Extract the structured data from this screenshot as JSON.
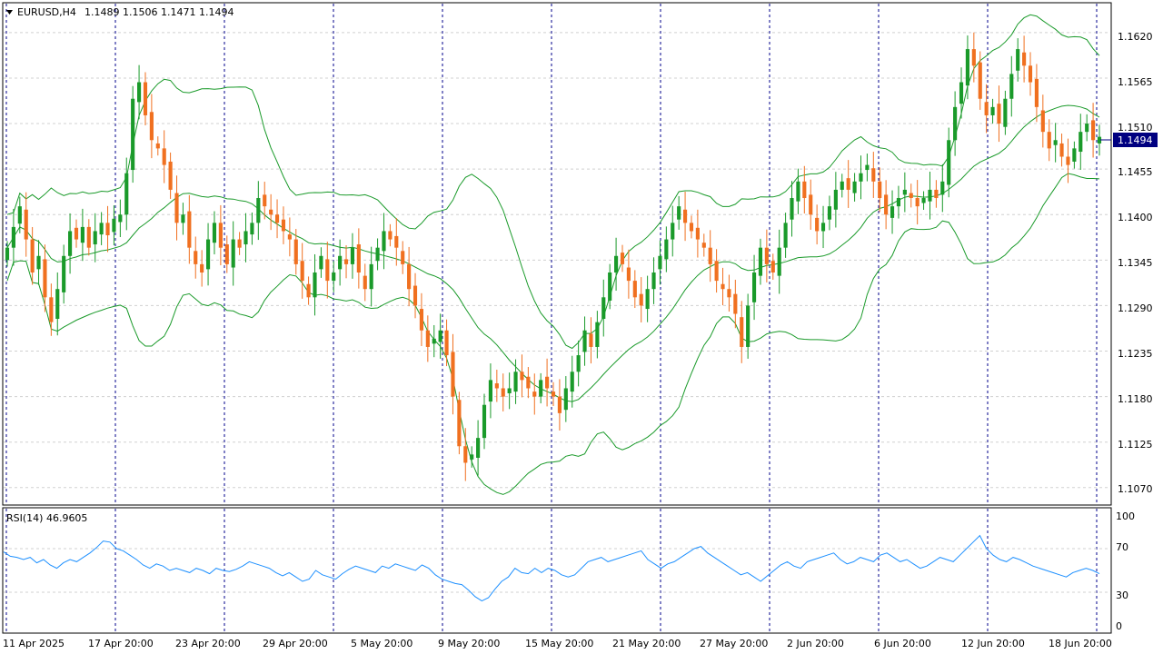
{
  "header": {
    "symbol_label": "EURUSD,H4",
    "ohlc": "1.1489 1.1506 1.1471 1.1494"
  },
  "rsi": {
    "label": "RSI(14) 46.9605",
    "levels": [
      "100",
      "70",
      "30",
      "0"
    ]
  },
  "price_scale": {
    "ticks": [
      "1.1620",
      "1.1565",
      "1.1510",
      "1.1455",
      "1.1400",
      "1.1345",
      "1.1290",
      "1.1235",
      "1.1180",
      "1.1125",
      "1.1070"
    ],
    "current_price": "1.1494"
  },
  "time_axis": {
    "labels": [
      "11 Apr 2025",
      "17 Apr 20:00",
      "23 Apr 20:00",
      "29 Apr 20:00",
      "5 May 20:00",
      "9 May 20:00",
      "15 May 20:00",
      "21 May 20:00",
      "27 May 20:00",
      "2 Jun 20:00",
      "6 Jun 20:00",
      "12 Jun 20:00",
      "18 Jun 20:00"
    ]
  },
  "colors": {
    "bull": "#1a9a2a",
    "bear": "#f07020",
    "bands": "#1a9a2a",
    "rsi": "#1e90ff",
    "separator": "#00008b",
    "grid": "#d0d0d0",
    "price_tag_bg": "#000080"
  },
  "chart_data": {
    "type": "candlestick",
    "symbol": "EURUSD",
    "timeframe": "H4",
    "last": {
      "open": 1.1489,
      "high": 1.1506,
      "low": 1.1471,
      "close": 1.1494
    },
    "ylim": [
      1.105,
      1.1655
    ],
    "closes": [
      1.136,
      1.1385,
      1.141,
      1.137,
      1.133,
      1.135,
      1.13,
      1.127,
      1.131,
      1.135,
      1.138,
      1.137,
      1.1385,
      1.136,
      1.138,
      1.139,
      1.1375,
      1.1395,
      1.14,
      1.145,
      1.154,
      1.156,
      1.152,
      1.149,
      1.148,
      1.146,
      1.143,
      1.139,
      1.14,
      1.136,
      1.134,
      1.133,
      1.137,
      1.139,
      1.136,
      1.134,
      1.137,
      1.136,
      1.138,
      1.139,
      1.142,
      1.141,
      1.14,
      1.139,
      1.138,
      1.137,
      1.134,
      1.132,
      1.13,
      1.133,
      1.135,
      1.132,
      1.133,
      1.135,
      1.134,
      1.136,
      1.133,
      1.131,
      1.134,
      1.136,
      1.138,
      1.137,
      1.136,
      1.134,
      1.131,
      1.129,
      1.126,
      1.124,
      1.125,
      1.126,
      1.123,
      1.118,
      1.112,
      1.11,
      1.111,
      1.113,
      1.117,
      1.12,
      1.119,
      1.118,
      1.119,
      1.121,
      1.12,
      1.119,
      1.118,
      1.12,
      1.119,
      1.118,
      1.116,
      1.119,
      1.121,
      1.123,
      1.126,
      1.124,
      1.127,
      1.13,
      1.133,
      1.135,
      1.134,
      1.132,
      1.13,
      1.129,
      1.131,
      1.133,
      1.135,
      1.137,
      1.139,
      1.141,
      1.139,
      1.138,
      1.137,
      1.136,
      1.134,
      1.132,
      1.131,
      1.13,
      1.128,
      1.124,
      1.129,
      1.133,
      1.136,
      1.134,
      1.133,
      1.136,
      1.139,
      1.142,
      1.144,
      1.142,
      1.14,
      1.138,
      1.139,
      1.141,
      1.143,
      1.144,
      1.143,
      1.144,
      1.145,
      1.146,
      1.144,
      1.142,
      1.14,
      1.141,
      1.142,
      1.143,
      1.142,
      1.141,
      1.142,
      1.143,
      1.142,
      1.144,
      1.149,
      1.153,
      1.156,
      1.16,
      1.158,
      1.154,
      1.152,
      1.153,
      1.151,
      1.154,
      1.157,
      1.16,
      1.158,
      1.156,
      1.153,
      1.15,
      1.148,
      1.149,
      1.147,
      1.146,
      1.148,
      1.15,
      1.151,
      1.149,
      1.1494
    ],
    "rsi_values": [
      67,
      63,
      62,
      60,
      62,
      57,
      60,
      55,
      52,
      57,
      60,
      58,
      62,
      66,
      71,
      77,
      76,
      70,
      68,
      64,
      60,
      55,
      52,
      56,
      54,
      50,
      52,
      50,
      48,
      52,
      50,
      47,
      52,
      50,
      49,
      51,
      54,
      58,
      56,
      54,
      52,
      48,
      45,
      48,
      44,
      40,
      42,
      50,
      46,
      44,
      42,
      47,
      51,
      54,
      52,
      50,
      48,
      54,
      52,
      56,
      54,
      52,
      50,
      55,
      52,
      46,
      42,
      40,
      38,
      37,
      32,
      26,
      22,
      25,
      33,
      40,
      44,
      52,
      48,
      47,
      52,
      48,
      52,
      50,
      46,
      44,
      46,
      52,
      58,
      60,
      62,
      58,
      60,
      62,
      64,
      66,
      68,
      60,
      56,
      52,
      56,
      58,
      62,
      66,
      70,
      72,
      66,
      62,
      58,
      54,
      50,
      46,
      48,
      44,
      40,
      45,
      50,
      55,
      58,
      54,
      52,
      58,
      60,
      62,
      64,
      66,
      60,
      56,
      58,
      62,
      60,
      58,
      64,
      66,
      62,
      58,
      60,
      56,
      52,
      54,
      58,
      62,
      60,
      58,
      64,
      70,
      76,
      82,
      70,
      64,
      60,
      58,
      62,
      60,
      57,
      54,
      52,
      50,
      48,
      46,
      44,
      48,
      50,
      52,
      50,
      47
    ],
    "ylabel": "",
    "xlabel": ""
  }
}
